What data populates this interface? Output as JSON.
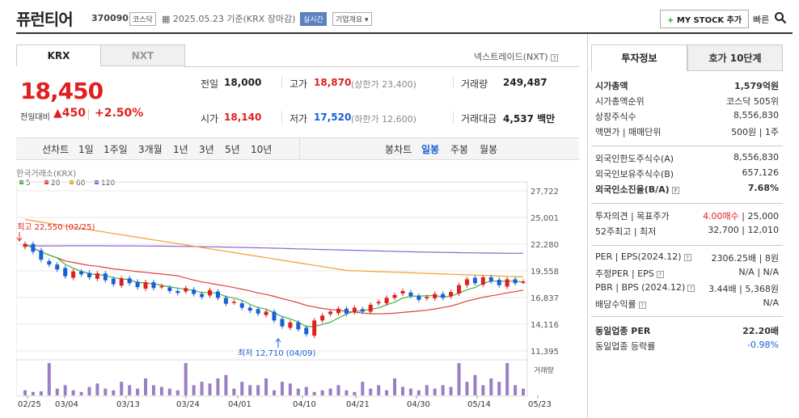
{
  "header": {
    "title": "퓨런티어",
    "code": "370090",
    "market": "코스닥",
    "date": "2025.05.23 기준(KRX 장마감)",
    "realtime": "실시간",
    "company": "기업개요",
    "mystock": "MY STOCK 추가",
    "quick": "빠른"
  },
  "tabs": {
    "krx": "KRX",
    "nxt": "NXT",
    "nxt_link": "넥스트레이드(NXT)"
  },
  "quote": {
    "price": "18,450",
    "change_label": "전일대비",
    "change": "▲450",
    "change_pct": "+2.50%",
    "prev_label": "전일",
    "prev": "18,000",
    "high_label": "고가",
    "high": "18,870",
    "upper": "(상한가 23,400)",
    "volume_label": "거래량",
    "volume": "249,487",
    "open_label": "시가",
    "open": "18,140",
    "low_label": "저가",
    "low": "17,520",
    "lower": "(하한가 12,600)",
    "amount_label": "거래대금",
    "amount": "4,537 백만"
  },
  "toolbar": {
    "line": "선차트",
    "d1": "1일",
    "w1": "1주일",
    "m3": "3개월",
    "y1": "1년",
    "y3": "3년",
    "y5": "5년",
    "y10": "10년",
    "candle": "봉차트",
    "daily": "일봉",
    "weekly": "주봉",
    "monthly": "월봉"
  },
  "right": {
    "tab_info": "투자정보",
    "tab_hoga": "호가 10단계",
    "rows": [
      {
        "label": "시가총액",
        "value": "1,579억원"
      },
      {
        "label": "시가총액순위",
        "value": "코스닥 505위"
      },
      {
        "label": "상장주식수",
        "value": "8,556,830"
      },
      {
        "label": "액면가 | 매매단위",
        "value": "500원 | 1주"
      },
      {
        "label": "외국인한도주식수(A)",
        "value": "8,556,830"
      },
      {
        "label": "외국인보유주식수(B)",
        "value": "657,126"
      },
      {
        "label": "외국인소진율(B/A)",
        "value": "7.68%"
      },
      {
        "label": "투자의견 | 목표주가",
        "value1": "4.00매수",
        "value2": "| 25,000"
      },
      {
        "label": "52주최고 | 최저",
        "value": "32,700 | 12,010"
      },
      {
        "label": "PER | EPS(2024.12)",
        "value": "2306.25배 | 8원"
      },
      {
        "label": "추정PER | EPS",
        "value": "N/A | N/A"
      },
      {
        "label": "PBR | BPS (2024.12)",
        "value": "3.44배 | 5,368원"
      },
      {
        "label": "배당수익률",
        "value": "N/A"
      },
      {
        "label": "동일업종 PER",
        "value": "22.20배"
      },
      {
        "label": "동일업종 등락률",
        "value": "-0.98%"
      }
    ]
  },
  "chart_data": {
    "type": "candlestick",
    "source_label": "한국거래소(KRX)",
    "legend": [
      {
        "name": "5",
        "color": "#44b044"
      },
      {
        "name": "20",
        "color": "#e04040"
      },
      {
        "name": "60",
        "color": "#f0a030"
      },
      {
        "name": "120",
        "color": "#9060d0"
      }
    ],
    "y_ticks": [
      "27,722",
      "25,001",
      "22,280",
      "19,558",
      "16,837",
      "14,116",
      "11,395"
    ],
    "ylim": [
      11395,
      27722
    ],
    "x_ticks": [
      "02/25",
      "03/04",
      "03/13",
      "03/24",
      "04/01",
      "04/10",
      "04/21",
      "04/30",
      "05/14",
      "05/23"
    ],
    "max_annotation": "최고 22,550 (02/25)",
    "min_annotation": "최저 12,710 (04/09)",
    "volume_label": "거래량",
    "closes": [
      22300,
      21500,
      20700,
      20200,
      19700,
      19000,
      19500,
      19200,
      18900,
      19300,
      18600,
      18200,
      18800,
      18300,
      17900,
      18400,
      17800,
      18000,
      17500,
      17300,
      17800,
      17200,
      16900,
      17600,
      16800,
      16200,
      16400,
      15800,
      15500,
      15200,
      15400,
      14500,
      13900,
      14300,
      13600,
      13100,
      14500,
      15000,
      15400,
      15700,
      15200,
      15800,
      15400,
      16100,
      16400,
      16800,
      17100,
      17500,
      17000,
      16600,
      16900,
      17200,
      16800,
      17400,
      18100,
      18700,
      18300,
      18900,
      18500,
      18100,
      18700,
      18300,
      18450
    ],
    "volumes": [
      0.15,
      0.1,
      0.12,
      0.95,
      0.2,
      0.3,
      0.15,
      0.1,
      0.25,
      0.35,
      0.2,
      0.15,
      0.4,
      0.3,
      0.2,
      0.5,
      0.3,
      0.25,
      0.2,
      0.15,
      0.95,
      0.3,
      0.4,
      0.35,
      0.5,
      0.6,
      0.2,
      0.4,
      0.3,
      0.3,
      0.5,
      0.15,
      0.4,
      0.35,
      0.2,
      0.25,
      0.1,
      0.15,
      0.2,
      0.3,
      0.15,
      0.1,
      0.4,
      0.2,
      0.3,
      0.15,
      0.5,
      0.25,
      0.2,
      0.15,
      0.3,
      0.2,
      0.3,
      0.25,
      0.95,
      0.4,
      0.6,
      0.3,
      0.5,
      0.4,
      0.95,
      0.3,
      0.2
    ]
  }
}
